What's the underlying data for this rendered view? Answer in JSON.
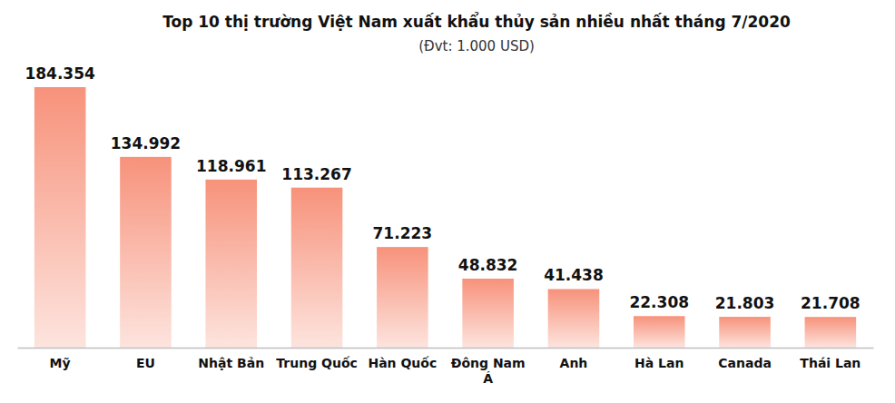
{
  "chart_data": {
    "type": "bar",
    "title": "Top 10 thị trường Việt Nam xuất khẩu thủy sản nhiều nhất tháng 7/2020",
    "subtitle": "(Đvt: 1.000 USD)",
    "categories": [
      "Mỹ",
      "EU",
      "Nhật Bản",
      "Trung Quốc",
      "Hàn Quốc",
      "Đông Nam Á",
      "Anh",
      "Hà Lan",
      "Canada",
      "Thái Lan"
    ],
    "values": [
      184354,
      134992,
      118961,
      113267,
      71223,
      48832,
      41438,
      22308,
      21803,
      21708
    ],
    "value_labels": [
      "184.354",
      "134.992",
      "118.961",
      "113.267",
      "71.223",
      "48.832",
      "41.438",
      "22.308",
      "21.803",
      "21.708"
    ],
    "color": "#f7927b",
    "data_labels": true,
    "tick_labels": "x",
    "grid": false
  }
}
